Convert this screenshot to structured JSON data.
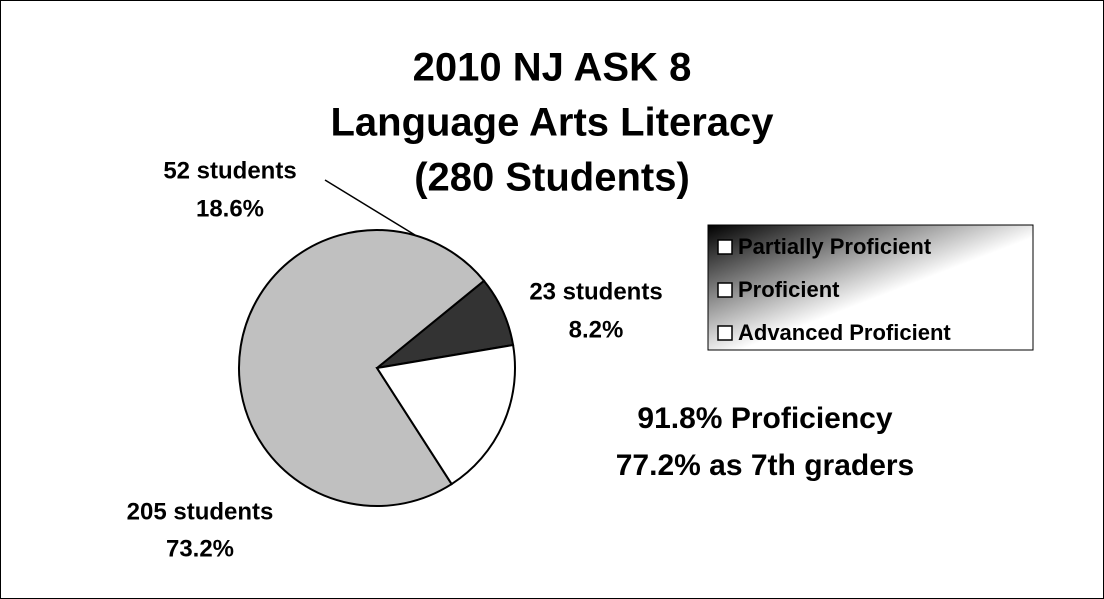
{
  "chart_data": {
    "type": "pie",
    "title_lines": [
      "2010 NJ ASK 8",
      "Language Arts Literacy",
      "(280 Students)"
    ],
    "categories": [
      "Partially Proficient",
      "Proficient",
      "Advanced Proficient"
    ],
    "values": [
      23,
      205,
      52
    ],
    "value_labels": [
      "23 students",
      "205 students",
      "52 students"
    ],
    "percent_labels": [
      "8.2%",
      "73.2%",
      "18.6%"
    ],
    "colors": [
      "#333333",
      "#c0c0c0",
      "#ffffff"
    ],
    "legend": "right",
    "annotations": [
      "91.8% Proficiency",
      "77.2% as 7th graders"
    ]
  }
}
